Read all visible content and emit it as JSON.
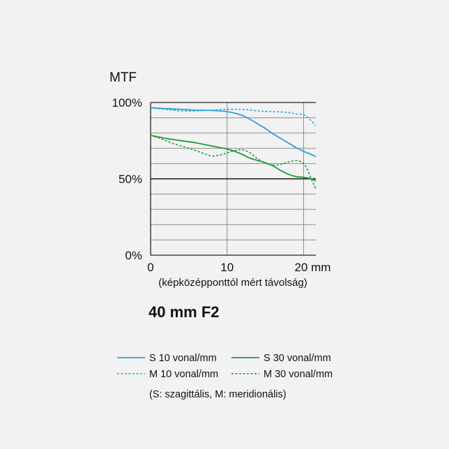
{
  "chart_data": {
    "type": "line",
    "title": "MTF",
    "subtitle": "40 mm F2",
    "xlabel": "(képközépponttól mért távolság)",
    "ylabel": "",
    "xlim": [
      0,
      21.6
    ],
    "ylim": [
      0,
      100
    ],
    "x_ticks": [
      {
        "value": 0,
        "label": "0"
      },
      {
        "value": 10,
        "label": "10"
      },
      {
        "value": 20,
        "label": "20 mm"
      }
    ],
    "y_ticks": [
      {
        "value": 0,
        "label": "0%"
      },
      {
        "value": 50,
        "label": "50%"
      },
      {
        "value": 100,
        "label": "100%"
      }
    ],
    "grid": true,
    "legend_position": "bottom",
    "legend_note": "(S: szagittális, M: meridionális)",
    "series": [
      {
        "name": "S 10 vonal/mm",
        "color": "#29a3d9",
        "style": "solid",
        "points": [
          [
            0,
            96.5
          ],
          [
            2,
            96
          ],
          [
            4,
            95.5
          ],
          [
            6,
            95
          ],
          [
            8,
            94.8
          ],
          [
            10,
            94
          ],
          [
            11,
            93
          ],
          [
            12,
            91.5
          ],
          [
            13,
            89
          ],
          [
            14,
            86
          ],
          [
            15,
            83
          ],
          [
            16,
            79.5
          ],
          [
            17,
            76.5
          ],
          [
            18,
            73.5
          ],
          [
            19,
            70.5
          ],
          [
            20,
            68
          ],
          [
            21,
            66
          ],
          [
            21.6,
            64.5
          ]
        ]
      },
      {
        "name": "M 10 vonal/mm",
        "color": "#29a3d9",
        "style": "dotted",
        "points": [
          [
            0,
            96.5
          ],
          [
            2,
            95.5
          ],
          [
            4,
            94.5
          ],
          [
            6,
            94.5
          ],
          [
            8,
            95
          ],
          [
            10,
            95.5
          ],
          [
            12,
            95.5
          ],
          [
            14,
            94.5
          ],
          [
            16,
            94
          ],
          [
            18,
            93.5
          ],
          [
            19,
            92.5
          ],
          [
            20,
            92
          ],
          [
            20.5,
            90.5
          ],
          [
            21,
            88
          ],
          [
            21.6,
            85
          ]
        ]
      },
      {
        "name": "S 30 vonal/mm",
        "color": "#1f9a3c",
        "style": "solid",
        "points": [
          [
            0,
            78.5
          ],
          [
            2,
            76.5
          ],
          [
            4,
            75
          ],
          [
            6,
            73.5
          ],
          [
            8,
            71.5
          ],
          [
            10,
            69.5
          ],
          [
            11,
            68
          ],
          [
            12,
            66
          ],
          [
            13,
            63.5
          ],
          [
            14,
            62
          ],
          [
            15,
            60.5
          ],
          [
            16,
            58.5
          ],
          [
            17,
            55.5
          ],
          [
            18,
            53
          ],
          [
            19,
            51.5
          ],
          [
            20,
            51
          ],
          [
            21,
            50
          ],
          [
            21.6,
            48.5
          ]
        ]
      },
      {
        "name": "M 30 vonal/mm",
        "color": "#1f9a3c",
        "style": "dotted",
        "points": [
          [
            0,
            78.5
          ],
          [
            1.5,
            76
          ],
          [
            3,
            73
          ],
          [
            5,
            70
          ],
          [
            7,
            66.5
          ],
          [
            8,
            65
          ],
          [
            9,
            65.5
          ],
          [
            10,
            67
          ],
          [
            11,
            68.5
          ],
          [
            12,
            69
          ],
          [
            13,
            67
          ],
          [
            14,
            63
          ],
          [
            15,
            60.5
          ],
          [
            16,
            59
          ],
          [
            17,
            59.5
          ],
          [
            18,
            61
          ],
          [
            19,
            62
          ],
          [
            19.7,
            61
          ],
          [
            20.3,
            58
          ],
          [
            21,
            50
          ],
          [
            21.6,
            43.5
          ]
        ]
      }
    ]
  }
}
